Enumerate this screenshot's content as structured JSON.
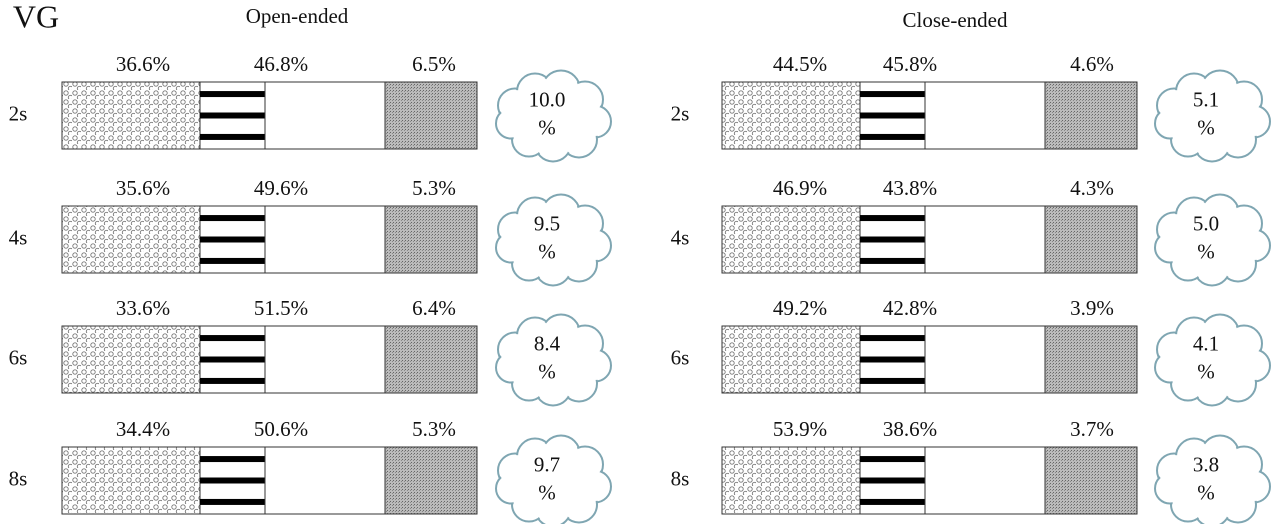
{
  "label": "VG",
  "panels": [
    {
      "title": "Open-ended",
      "rows": [
        {
          "label": "2s",
          "segments": [
            "36.6%",
            "46.8%",
            "6.5%"
          ],
          "cloud": [
            "10.0",
            "%"
          ]
        },
        {
          "label": "4s",
          "segments": [
            "35.6%",
            "49.6%",
            "5.3%"
          ],
          "cloud": [
            "9.5",
            "%"
          ]
        },
        {
          "label": "6s",
          "segments": [
            "33.6%",
            "51.5%",
            "6.4%"
          ],
          "cloud": [
            "8.4",
            "%"
          ]
        },
        {
          "label": "8s",
          "segments": [
            "34.4%",
            "50.6%",
            "5.3%"
          ],
          "cloud": [
            "9.7",
            "%"
          ]
        }
      ]
    },
    {
      "title": "Close-ended",
      "rows": [
        {
          "label": "2s",
          "segments": [
            "44.5%",
            "45.8%",
            "4.6%"
          ],
          "cloud": [
            "5.1",
            "%"
          ]
        },
        {
          "label": "4s",
          "segments": [
            "46.9%",
            "43.8%",
            "4.3%"
          ],
          "cloud": [
            "5.0",
            "%"
          ]
        },
        {
          "label": "6s",
          "segments": [
            "49.2%",
            "42.8%",
            "3.9%"
          ],
          "cloud": [
            "4.1",
            "%"
          ]
        },
        {
          "label": "8s",
          "segments": [
            "53.9%",
            "38.6%",
            "3.7%"
          ],
          "cloud": [
            "3.8",
            "%"
          ]
        }
      ]
    }
  ]
}
